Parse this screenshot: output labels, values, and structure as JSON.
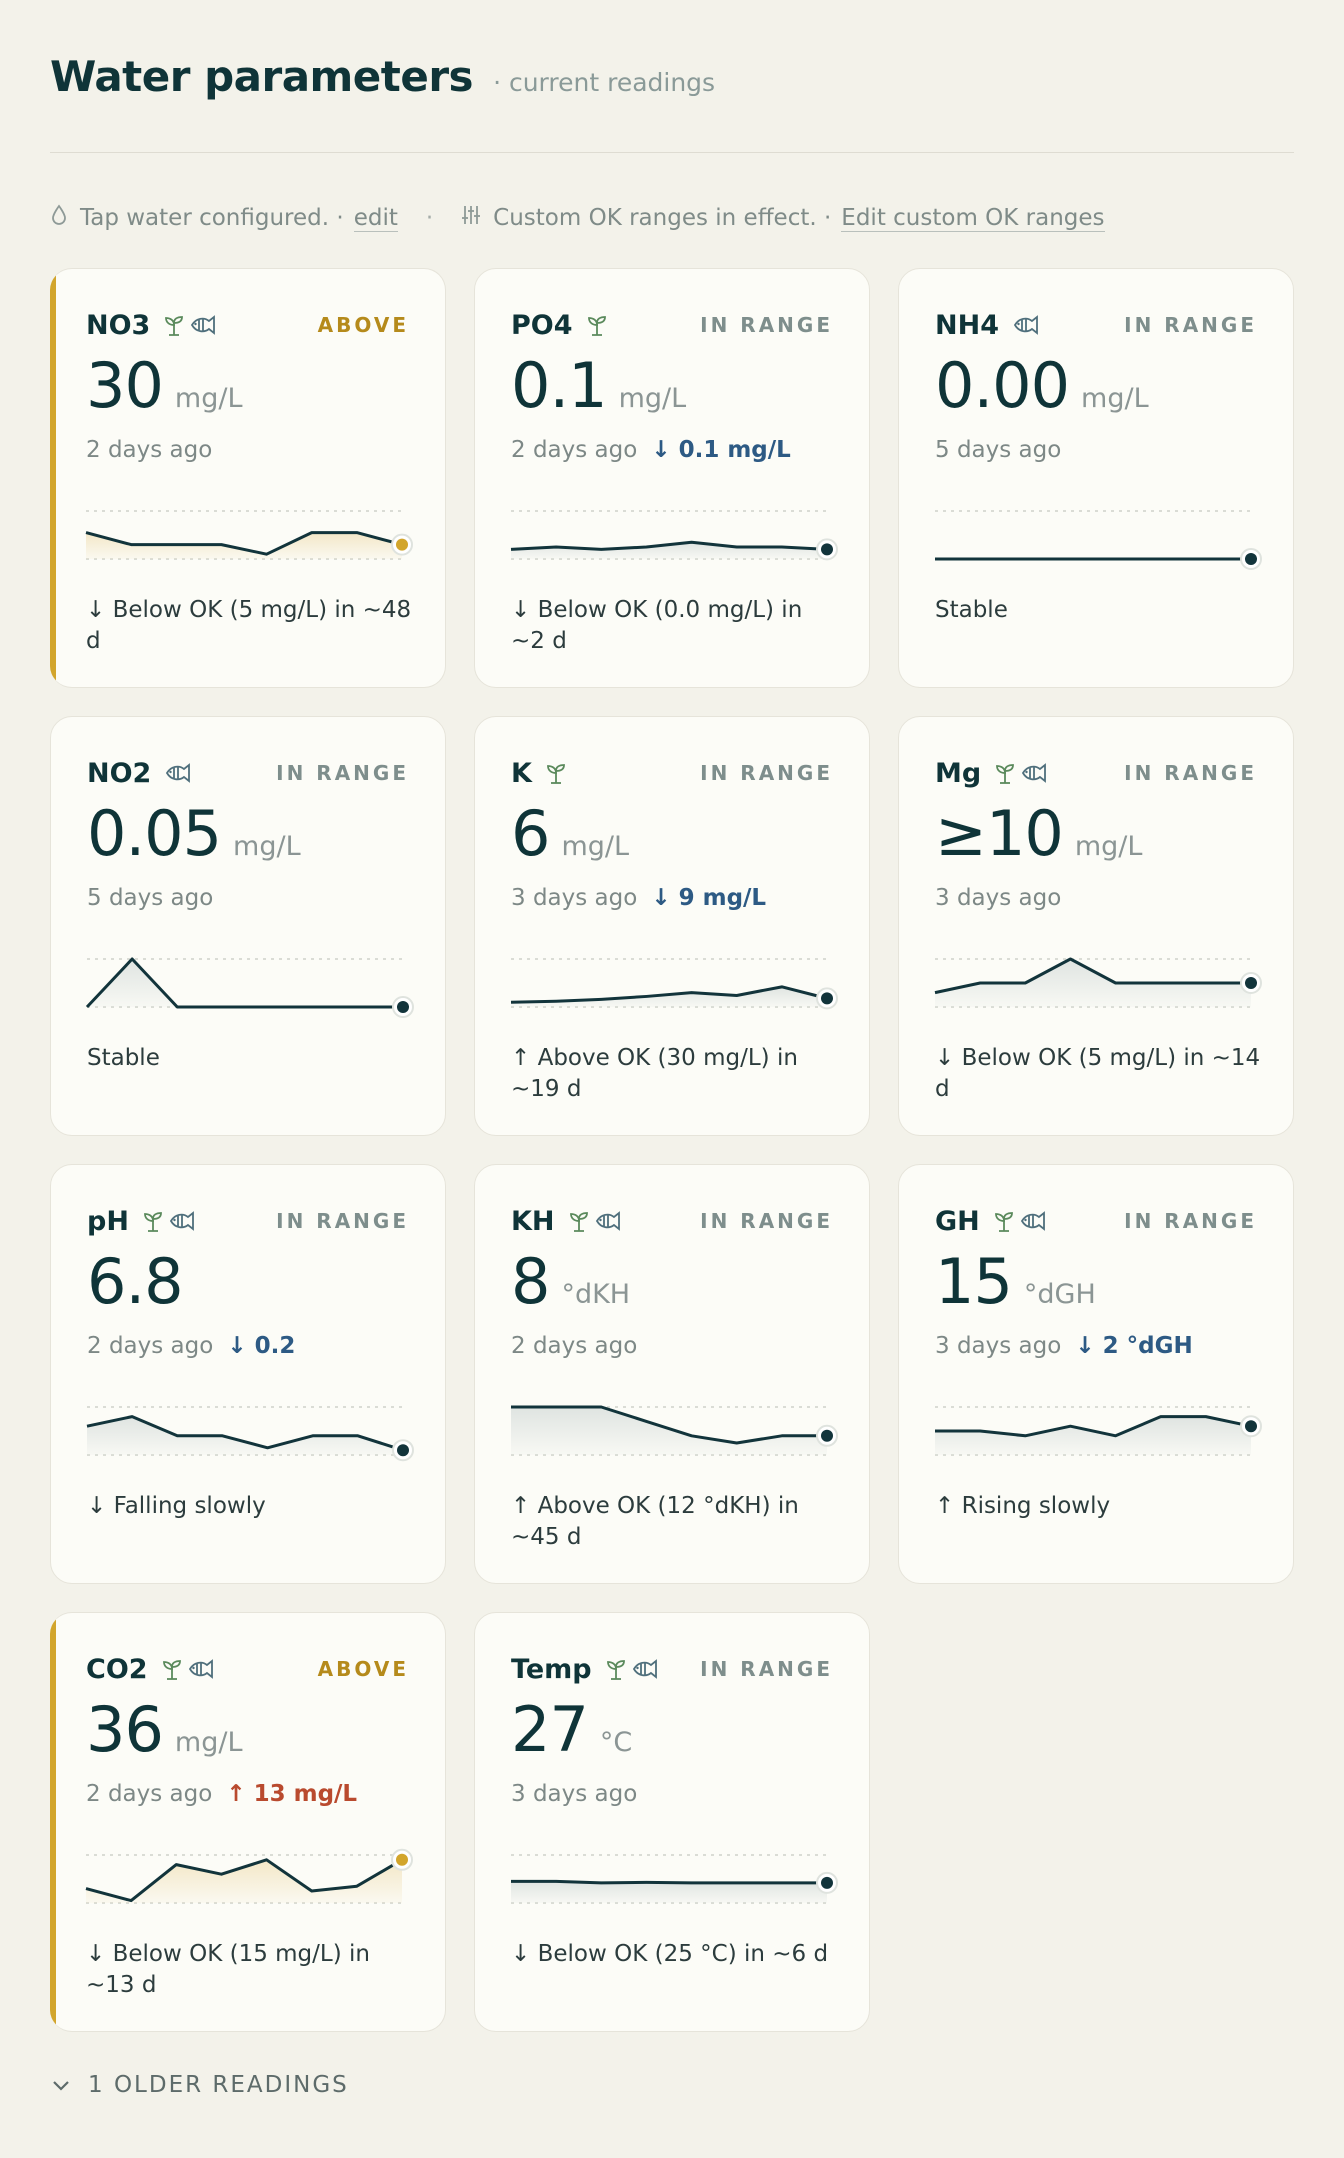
{
  "header": {
    "title": "Water parameters",
    "subtitle": "· current readings"
  },
  "notice": {
    "tap_text": "Tap water configured. ·",
    "tap_link": "edit",
    "custom_text": "Custom OK ranges in effect. ·",
    "custom_link": "Edit custom OK ranges"
  },
  "colors": {
    "accent_above": "#d2a52c",
    "line": "#12343b",
    "falling": "#2d5a84",
    "rising": "#b94a2e"
  },
  "cards": [
    {
      "name": "NO3",
      "plant": true,
      "fish": true,
      "status": "ABOVE",
      "above": true,
      "value": "30",
      "unit": "mg/L",
      "ago": "2 days ago",
      "delta": "",
      "delta_dir": "",
      "forecast": "↓ Below OK (5 mg/L) in ~48 d",
      "trend": [
        0.55,
        0.3,
        0.3,
        0.3,
        0.1,
        0.55,
        0.55,
        0.3
      ],
      "band": 0.45
    },
    {
      "name": "PO4",
      "plant": true,
      "fish": false,
      "status": "IN RANGE",
      "above": false,
      "value": "0.1",
      "unit": "mg/L",
      "ago": "2 days ago",
      "delta": "↓ 0.1 mg/L",
      "delta_dir": "down",
      "forecast": "↓ Below OK (0.0 mg/L) in ~2 d",
      "trend": [
        0.2,
        0.25,
        0.2,
        0.25,
        0.35,
        0.25,
        0.25,
        0.2
      ],
      "band": 0.1
    },
    {
      "name": "NH4",
      "plant": false,
      "fish": true,
      "status": "IN RANGE",
      "above": false,
      "value": "0.00",
      "unit": "mg/L",
      "ago": "5 days ago",
      "delta": "",
      "delta_dir": "",
      "forecast": "Stable",
      "trend": [
        0.0,
        0.0,
        0.0,
        0.0,
        0.0,
        0.0,
        0.0,
        0.0
      ],
      "band": 0.0
    },
    {
      "name": "NO2",
      "plant": false,
      "fish": true,
      "status": "IN RANGE",
      "above": false,
      "value": "0.05",
      "unit": "mg/L",
      "ago": "5 days ago",
      "delta": "",
      "delta_dir": "",
      "forecast": "Stable",
      "trend": [
        0.0,
        1.0,
        0.0,
        0.0,
        0.0,
        0.0,
        0.0,
        0.0
      ],
      "band": 0.0
    },
    {
      "name": "K",
      "plant": true,
      "fish": false,
      "status": "IN RANGE",
      "above": false,
      "value": "6",
      "unit": "mg/L",
      "ago": "3 days ago",
      "delta": "↓ 9 mg/L",
      "delta_dir": "down",
      "forecast": "↑ Above OK (30 mg/L) in ~19 d",
      "trend": [
        0.1,
        0.12,
        0.16,
        0.22,
        0.3,
        0.24,
        0.42,
        0.18
      ],
      "band": 0.0
    },
    {
      "name": "Mg",
      "plant": true,
      "fish": true,
      "status": "IN RANGE",
      "above": false,
      "value": "≥10",
      "unit": "mg/L",
      "ago": "3 days ago",
      "delta": "",
      "delta_dir": "",
      "forecast": "↓ Below OK (5 mg/L) in ~14 d",
      "trend": [
        0.3,
        0.5,
        0.5,
        1.0,
        0.5,
        0.5,
        0.5,
        0.5
      ],
      "band": 0.0
    },
    {
      "name": "pH",
      "plant": true,
      "fish": true,
      "status": "IN RANGE",
      "above": false,
      "value": "6.8",
      "unit": "",
      "ago": "2 days ago",
      "delta": "↓ 0.2",
      "delta_dir": "down",
      "forecast": "↓ Falling slowly",
      "trend": [
        0.6,
        0.8,
        0.4,
        0.4,
        0.15,
        0.4,
        0.4,
        0.1
      ],
      "band": 0.0
    },
    {
      "name": "KH",
      "plant": true,
      "fish": true,
      "status": "IN RANGE",
      "above": false,
      "value": "8",
      "unit": "°dKH",
      "ago": "2 days ago",
      "delta": "",
      "delta_dir": "",
      "forecast": "↑ Above OK (12 °dKH) in ~45 d",
      "trend": [
        1.0,
        1.0,
        1.0,
        0.7,
        0.4,
        0.25,
        0.4,
        0.4
      ],
      "band": 0.0
    },
    {
      "name": "GH",
      "plant": true,
      "fish": true,
      "status": "IN RANGE",
      "above": false,
      "value": "15",
      "unit": "°dGH",
      "ago": "3 days ago",
      "delta": "↓ 2 °dGH",
      "delta_dir": "down",
      "forecast": "↑ Rising slowly",
      "trend": [
        0.5,
        0.5,
        0.4,
        0.6,
        0.4,
        0.8,
        0.8,
        0.6
      ],
      "band": 0.0
    },
    {
      "name": "CO2",
      "plant": true,
      "fish": true,
      "status": "ABOVE",
      "above": true,
      "value": "36",
      "unit": "mg/L",
      "ago": "2 days ago",
      "delta": "↑ 13 mg/L",
      "delta_dir": "up",
      "forecast": "↓ Below OK (15 mg/L) in ~13 d",
      "trend": [
        0.3,
        0.05,
        0.8,
        0.6,
        0.9,
        0.25,
        0.35,
        0.9
      ],
      "band": 0.1
    },
    {
      "name": "Temp",
      "plant": true,
      "fish": true,
      "status": "IN RANGE",
      "above": false,
      "value": "27",
      "unit": "°C",
      "ago": "3 days ago",
      "delta": "",
      "delta_dir": "",
      "forecast": "↓ Below OK (25 °C) in ~6 d",
      "trend": [
        0.45,
        0.45,
        0.42,
        0.43,
        0.42,
        0.42,
        0.42,
        0.42
      ],
      "band": 0.0
    }
  ],
  "older": {
    "label": "1 OLDER READINGS"
  }
}
